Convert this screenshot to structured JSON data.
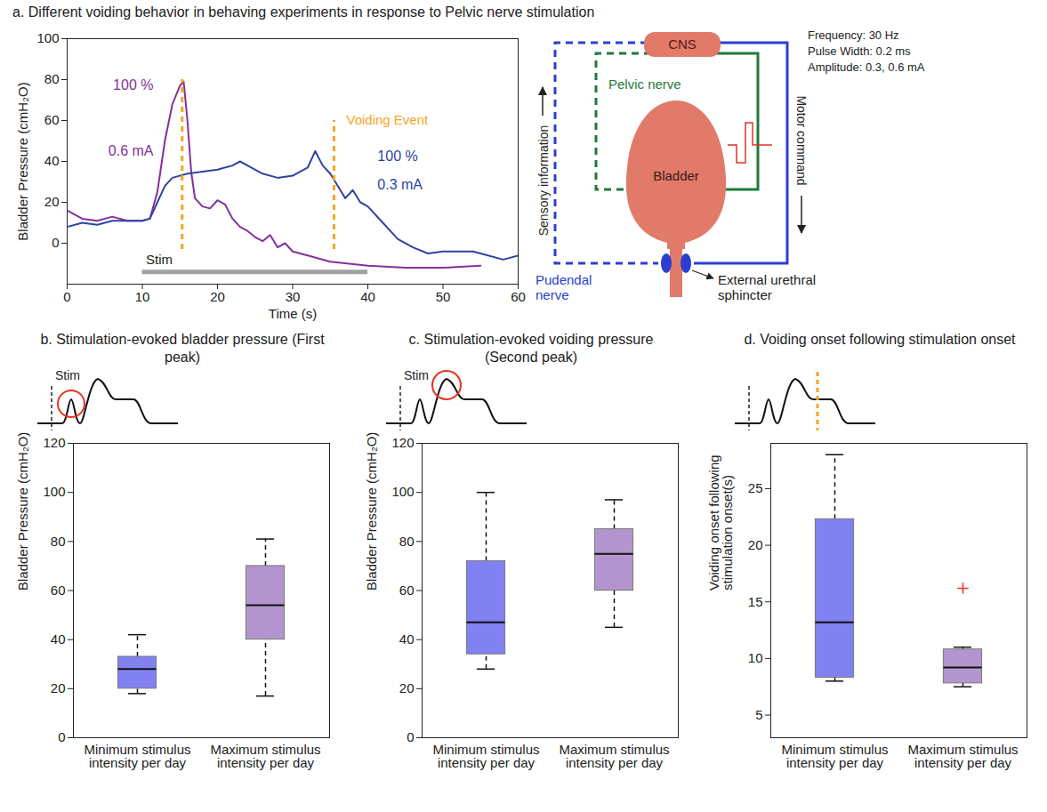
{
  "chart_data": [
    {
      "type": "line",
      "title": "a. Different voiding behavior in behaving experiments in response to Pelvic nerve stimulation",
      "xlabel": "Time (s)",
      "ylabel": "Bladder Pressure (cmH₂O)",
      "xlim": [
        0,
        60
      ],
      "xticks": [
        0,
        10,
        20,
        30,
        40,
        50,
        60
      ],
      "ylim": [
        -20,
        100
      ],
      "yticks": [
        0,
        20,
        40,
        60,
        80,
        100
      ],
      "series": [
        {
          "name": "0.6 mA",
          "annotation": "100 %",
          "color": "#85309b",
          "x": [
            0,
            2,
            4,
            6,
            8,
            10,
            11,
            12,
            13,
            14,
            15,
            15.5,
            16,
            16.5,
            17,
            18,
            19,
            20,
            21,
            22,
            23,
            24,
            25,
            26,
            27,
            28,
            29,
            30,
            32,
            35,
            40,
            45,
            50,
            55
          ],
          "values": [
            16,
            12,
            11,
            13,
            11,
            11,
            12,
            25,
            50,
            68,
            77,
            79,
            60,
            35,
            22,
            18,
            17,
            21,
            19,
            12,
            8,
            6,
            3,
            1,
            4,
            -2,
            0,
            -4,
            -6,
            -9,
            -11,
            -12,
            -12,
            -11
          ]
        },
        {
          "name": "0.3 mA",
          "annotation": "100 %",
          "color": "#2d44a3",
          "x": [
            0,
            2,
            4,
            6,
            8,
            10,
            11,
            12,
            13,
            14,
            16,
            18,
            20,
            22,
            23,
            24,
            26,
            28,
            30,
            32,
            33,
            34,
            35,
            36,
            37,
            38,
            39,
            40,
            42,
            44,
            46,
            48,
            50,
            52,
            54,
            56,
            58,
            60
          ],
          "values": [
            8,
            10,
            9,
            11,
            11,
            11,
            12,
            20,
            28,
            32,
            34,
            35,
            36,
            38,
            40,
            38,
            34,
            32,
            33,
            37,
            45,
            38,
            34,
            28,
            22,
            26,
            20,
            18,
            10,
            2,
            -2,
            -5,
            -4,
            -4,
            -4,
            -6,
            -8,
            -6
          ]
        }
      ],
      "voiding_event": {
        "label": "Voiding Event",
        "color": "#f5a623",
        "x": [
          15.3,
          35.5
        ],
        "y_start": [
          -3,
          -3
        ],
        "y_end": [
          80,
          60
        ]
      },
      "stim": {
        "label": "Stim",
        "color": "#a0a0a0",
        "x_start": 10,
        "x_end": 40,
        "y": -14
      }
    },
    {
      "type": "box",
      "title": "b. Stimulation-evoked bladder pressure (First peak)",
      "annotation": "Stim",
      "categories": [
        "Minimum stimulus intensity per day",
        "Maximum stimulus intensity per day"
      ],
      "colors": [
        "#6b6bf0",
        "#a482c6"
      ],
      "ylabel": "Bladder Pressure (cmH₂O)",
      "ylim": [
        0,
        120
      ],
      "yticks": [
        0,
        20,
        40,
        60,
        80,
        100,
        120
      ],
      "boxes": [
        {
          "min": 18,
          "q1": 20,
          "median": 28,
          "q3": 33,
          "max": 42,
          "outliers": []
        },
        {
          "min": 17,
          "q1": 40,
          "median": 54,
          "q3": 70,
          "max": 81,
          "outliers": []
        }
      ]
    },
    {
      "type": "box",
      "title": "c. Stimulation-evoked voiding pressure (Second peak)",
      "annotation": "Stim",
      "categories": [
        "Minimum stimulus intensity per day",
        "Maximum stimulus intensity per day"
      ],
      "colors": [
        "#6b6bf0",
        "#a482c6"
      ],
      "ylabel": "Bladder Pressure (cmH₂O)",
      "ylim": [
        0,
        120
      ],
      "yticks": [
        0,
        20,
        40,
        60,
        80,
        100,
        120
      ],
      "boxes": [
        {
          "min": 28,
          "q1": 34,
          "median": 47,
          "q3": 72,
          "max": 100,
          "outliers": []
        },
        {
          "min": 45,
          "q1": 60,
          "median": 75,
          "q3": 85,
          "max": 97,
          "outliers": []
        }
      ]
    },
    {
      "type": "box",
      "title": "d. Voiding onset following stimulation onset",
      "categories": [
        "Minimum stimulus intensity per day",
        "Maximum stimulus intensity per day"
      ],
      "colors": [
        "#6b6bf0",
        "#a482c6"
      ],
      "ylabel": "Voiding onset following stimulation onset(s)",
      "ylim": [
        3,
        29
      ],
      "yticks": [
        5,
        10,
        15,
        20,
        25
      ],
      "boxes": [
        {
          "min": 8,
          "q1": 8.3,
          "median": 13.2,
          "q3": 22.3,
          "max": 28,
          "outliers": []
        },
        {
          "min": 7.5,
          "q1": 7.8,
          "median": 9.2,
          "q3": 10.8,
          "max": 11,
          "outliers": [
            16.2
          ]
        }
      ]
    }
  ],
  "diagram": {
    "nodes": {
      "cns": "CNS",
      "bladder": "Bladder",
      "sphincter": "External urethral sphincter"
    },
    "nerves": {
      "pelvic": "Pelvic nerve",
      "pudendal": "Pudendal nerve"
    },
    "arrows": {
      "sensory": "Sensory information",
      "motor": "Motor command"
    },
    "stimulus": {
      "frequency": "Frequency: 30 Hz",
      "pulse_width": "Pulse Width: 0.2 ms",
      "amplitude": "Amplitude: 0.3, 0.6 mA"
    }
  }
}
